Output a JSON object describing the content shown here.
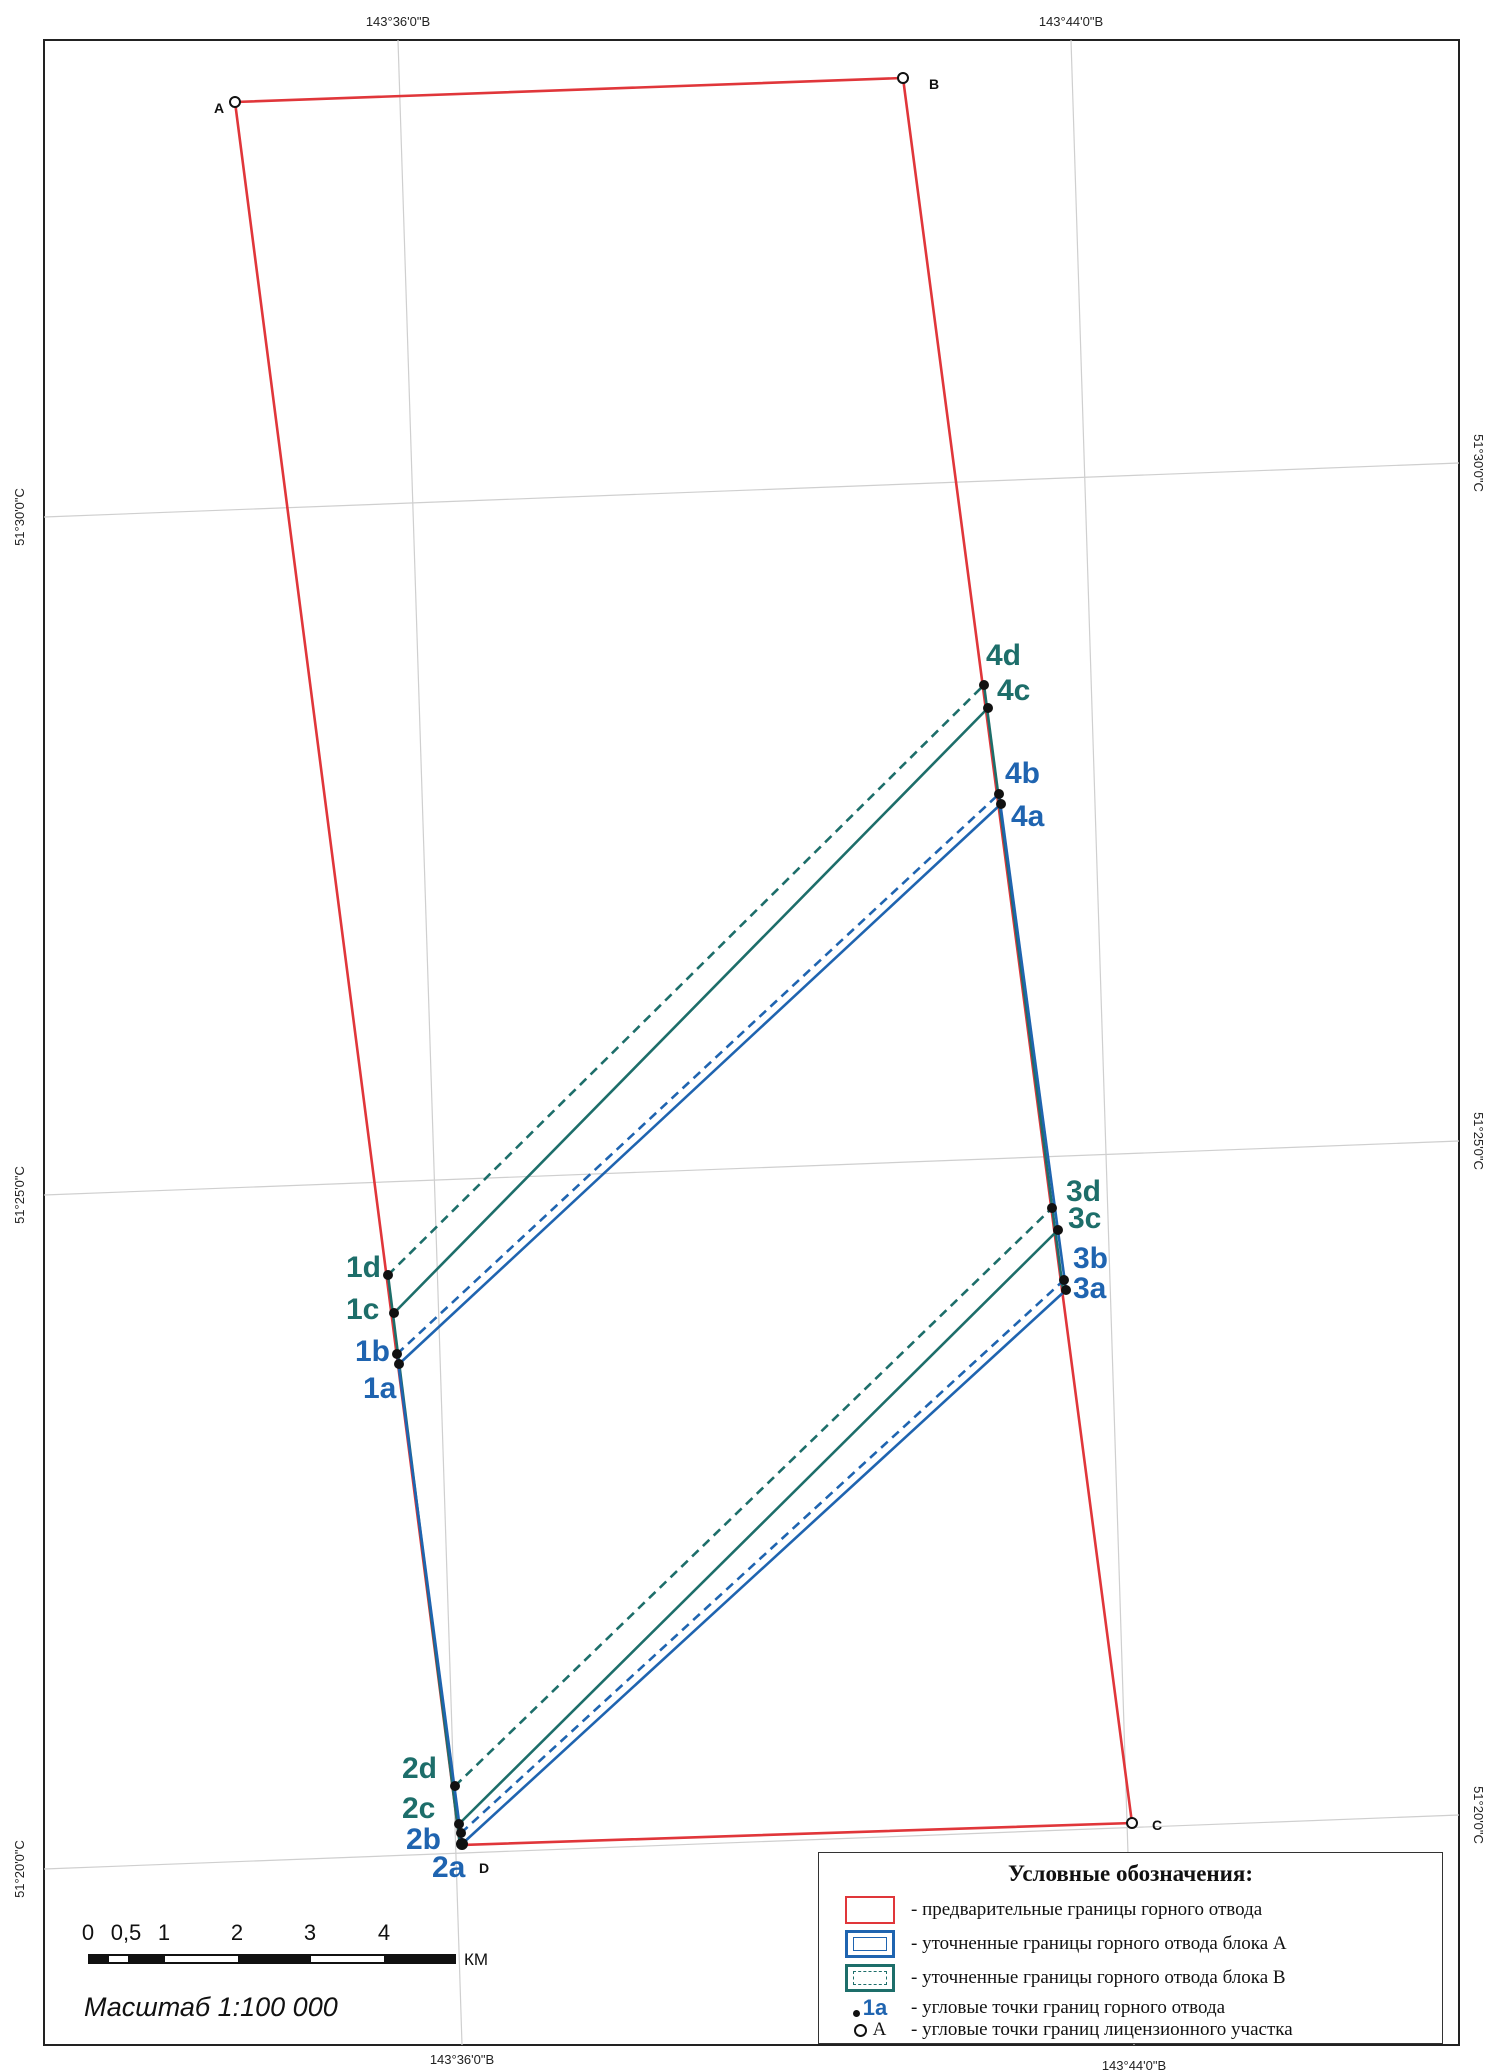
{
  "map": {
    "graticule": {
      "top_labels": [
        "143°36'0\"В",
        "143°44'0\"В"
      ],
      "bottom_labels": [
        "143°36'0\"В",
        "143°44'0\"В"
      ],
      "left_labels": [
        "51°30'0\"С",
        "51°25'0\"С",
        "51°20'0\"С"
      ],
      "right_labels": [
        "51°30'0\"С",
        "51°25'0\"С",
        "51°20'0\"С"
      ]
    },
    "license_corners": [
      "A",
      "B",
      "C",
      "D"
    ],
    "mining_points": {
      "block_a": [
        "1a",
        "1b",
        "2a",
        "2b",
        "3a",
        "3b",
        "4a",
        "4b"
      ],
      "block_b": [
        "1c",
        "1d",
        "2c",
        "2d",
        "3c",
        "3d",
        "4c",
        "4d"
      ]
    },
    "colors": {
      "preliminary_boundary": "#e0363a",
      "block_a": "#1f64b0",
      "block_b": "#1d6e6a",
      "graticule": "#cccccc"
    }
  },
  "legend": {
    "title": "Условные обозначения:",
    "items": [
      "- предварительные границы горного отвода",
      "- уточненные границы горного отвода блока А",
      "- уточненные границы горного отвода блока В",
      "- угловые точки границ горного отвода",
      "- угловые точки границ лицензионного участка"
    ],
    "point_sample": "1a",
    "corner_sample": "A"
  },
  "scale": {
    "ticks": [
      "0",
      "0,5",
      "1",
      "2",
      "3",
      "4"
    ],
    "unit": "КМ",
    "text": "Масштаб 1:100 000"
  }
}
